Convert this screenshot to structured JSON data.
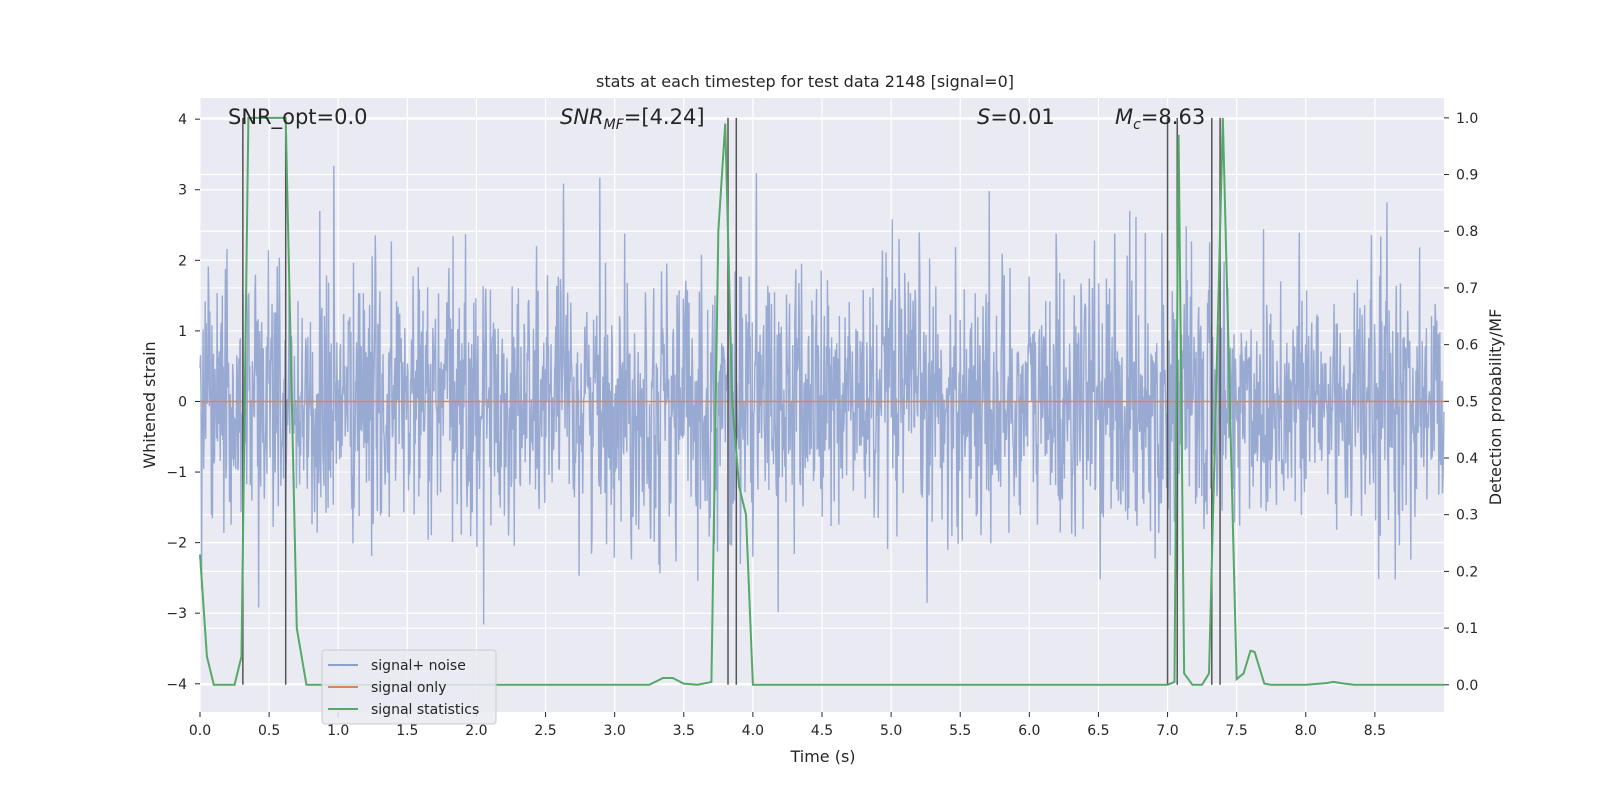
{
  "chart_data": {
    "type": "line",
    "title": "stats at each timestep for test data 2148 [signal=0]",
    "xlabel": "Time (s)",
    "ylabel": "Whitened strain",
    "y2label": "Detection probability/MF",
    "xlim": [
      0.0,
      9.0
    ],
    "ylim": [
      -4.4,
      4.3
    ],
    "y2lim": [
      -0.048,
      1.035
    ],
    "xticks": [
      "0.0",
      "0.5",
      "1.0",
      "1.5",
      "2.0",
      "2.5",
      "3.0",
      "3.5",
      "4.0",
      "4.5",
      "5.0",
      "5.5",
      "6.0",
      "6.5",
      "7.0",
      "7.5",
      "8.0",
      "8.5"
    ],
    "yticks": [
      "4",
      "3",
      "2",
      "1",
      "0",
      "−1",
      "−2",
      "−3",
      "−4"
    ],
    "y2ticks": [
      "1.0",
      "0.9",
      "0.8",
      "0.7",
      "0.6",
      "0.5",
      "0.4",
      "0.3",
      "0.2",
      "0.1",
      "0.0"
    ],
    "annotations": {
      "snr_opt": "SNR_opt=0.0",
      "snr_mf_main": "SNR",
      "snr_mf_sub": "MF",
      "snr_mf_val": "=[4.24]",
      "s_main": "S",
      "s_val": "=0.01",
      "mc_main": "M",
      "mc_sub": "c",
      "mc_val": "=8.63"
    },
    "colors": {
      "noise": "#8a9fcc",
      "signal_only": "#dd8452",
      "statistics": "#55a868",
      "vlines": "#555555",
      "background": "#eaeaf2",
      "grid": "#ffffff"
    },
    "series": [
      {
        "name": "signal+ noise",
        "description": "whitened strain noise, amplitude ~ +/-1.6 with spikes to +/-4"
      },
      {
        "name": "signal only",
        "values": "constant 0"
      },
      {
        "name": "signal statistics",
        "x": [
          0.0,
          0.05,
          0.1,
          0.25,
          0.3,
          0.35,
          0.4,
          0.45,
          0.55,
          0.62,
          0.7,
          0.77,
          0.85,
          1.0,
          3.25,
          3.35,
          3.42,
          3.5,
          3.6,
          3.7,
          3.75,
          3.8,
          3.85,
          3.9,
          3.95,
          4.0,
          4.05,
          7.0,
          7.05,
          7.08,
          7.12,
          7.18,
          7.25,
          7.3,
          7.35,
          7.4,
          7.5,
          7.55,
          7.6,
          7.63,
          7.7,
          7.75,
          8.0,
          8.15,
          8.2,
          8.28,
          8.35,
          9.0
        ],
        "values": [
          0.23,
          0.05,
          0.0,
          0.0,
          0.05,
          1.0,
          1.0,
          1.0,
          1.0,
          1.0,
          0.1,
          0.0,
          0.0,
          0.0,
          0.0,
          0.012,
          0.012,
          0.002,
          0.0,
          0.005,
          0.8,
          0.99,
          0.5,
          0.35,
          0.3,
          0.0,
          0.0,
          0.0,
          0.005,
          0.97,
          0.02,
          0.0,
          0.0,
          0.02,
          0.5,
          1.0,
          0.01,
          0.02,
          0.06,
          0.058,
          0.002,
          0.0,
          0.0,
          0.003,
          0.005,
          0.002,
          0.0,
          0.0
        ]
      }
    ],
    "vlines_x": [
      0.31,
      0.62,
      3.82,
      3.88,
      7.0,
      7.07,
      7.32,
      7.38
    ],
    "legend": {
      "location": "lower-left",
      "entries": [
        "signal+ noise",
        "signal only",
        "signal statistics"
      ]
    }
  }
}
